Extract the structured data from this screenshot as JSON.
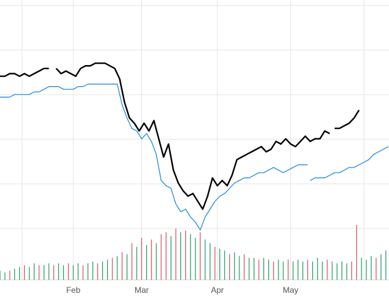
{
  "chart_data": {
    "type": "line",
    "title": "",
    "xlabel": "",
    "ylabel": "",
    "x_ticks": [
      {
        "label": "Feb",
        "t": 22
      },
      {
        "label": "Mar",
        "t": 50
      },
      {
        "label": "Apr",
        "t": 81
      },
      {
        "label": "May",
        "t": 111
      }
    ],
    "t_range": [
      -8,
      151
    ],
    "y_range": [
      0,
      100
    ],
    "grid": true,
    "legend": "none",
    "colors": {
      "primary": "#000000",
      "secondary": "#1e88e5",
      "volume_up": "#26a269",
      "volume_down": "#e05561",
      "grid": "#e6e6e6"
    },
    "series": [
      {
        "style": "black",
        "segments": [
          [
            [
              -8,
              76
            ],
            [
              -6,
              76
            ],
            [
              -4,
              77
            ],
            [
              -2,
              77
            ],
            [
              0,
              76
            ],
            [
              2,
              77
            ],
            [
              4,
              76
            ],
            [
              6,
              77
            ],
            [
              8,
              78
            ],
            [
              10,
              79
            ],
            [
              12,
              79
            ]
          ],
          [
            [
              15,
              79
            ],
            [
              17,
              77
            ],
            [
              19,
              78
            ],
            [
              21,
              77
            ],
            [
              23,
              76
            ],
            [
              25,
              79
            ],
            [
              27,
              80
            ],
            [
              29,
              80
            ],
            [
              31,
              81
            ],
            [
              33,
              81
            ],
            [
              35,
              81
            ],
            [
              37,
              80
            ],
            [
              39,
              79
            ],
            [
              41,
              75
            ],
            [
              43,
              66
            ],
            [
              45,
              60
            ],
            [
              47,
              58
            ],
            [
              49,
              55
            ],
            [
              51,
              58
            ],
            [
              53,
              55
            ],
            [
              55,
              59
            ],
            [
              57,
              52
            ],
            [
              59,
              45
            ],
            [
              61,
              50
            ],
            [
              63,
              40
            ],
            [
              65,
              35
            ],
            [
              67,
              32
            ],
            [
              69,
              30
            ],
            [
              71,
              31
            ],
            [
              73,
              28
            ],
            [
              75,
              25
            ],
            [
              77,
              30
            ],
            [
              79,
              37
            ],
            [
              81,
              34
            ],
            [
              83,
              36
            ],
            [
              85,
              34
            ],
            [
              87,
              38
            ],
            [
              89,
              44
            ],
            [
              91,
              45
            ],
            [
              93,
              46
            ],
            [
              95,
              47
            ],
            [
              97,
              48
            ],
            [
              99,
              49
            ],
            [
              101,
              47
            ],
            [
              103,
              48
            ],
            [
              105,
              51
            ],
            [
              107,
              50
            ],
            [
              109,
              52
            ],
            [
              111,
              50
            ],
            [
              113,
              49
            ],
            [
              115,
              51
            ],
            [
              117,
              53
            ],
            [
              119,
              51
            ],
            [
              121,
              52
            ],
            [
              123,
              52
            ],
            [
              125,
              55
            ],
            [
              127,
              54
            ]
          ],
          [
            [
              129,
              56
            ],
            [
              131,
              56
            ],
            [
              133,
              57
            ],
            [
              135,
              58
            ],
            [
              137,
              60
            ],
            [
              139,
              63
            ]
          ]
        ]
      },
      {
        "style": "blue",
        "segments": [
          [
            [
              -8,
              68
            ],
            [
              -6,
              68
            ],
            [
              -4,
              68
            ],
            [
              -2,
              69
            ],
            [
              0,
              69
            ],
            [
              2,
              69
            ],
            [
              4,
              69
            ],
            [
              6,
              70
            ],
            [
              8,
              70
            ],
            [
              10,
              71
            ],
            [
              12,
              72
            ],
            [
              14,
              72
            ],
            [
              16,
              72
            ],
            [
              18,
              71
            ],
            [
              20,
              71
            ],
            [
              22,
              71
            ],
            [
              24,
              72
            ],
            [
              26,
              72
            ],
            [
              28,
              73
            ],
            [
              30,
              73
            ],
            [
              32,
              73
            ],
            [
              34,
              73
            ],
            [
              36,
              73
            ],
            [
              38,
              73
            ],
            [
              40,
              73
            ],
            [
              42,
              65
            ],
            [
              44,
              60
            ],
            [
              46,
              56
            ],
            [
              48,
              55
            ],
            [
              50,
              52
            ],
            [
              52,
              54
            ],
            [
              54,
              51
            ],
            [
              56,
              46
            ],
            [
              58,
              36
            ],
            [
              60,
              34
            ],
            [
              62,
              33
            ],
            [
              64,
              27
            ],
            [
              66,
              24
            ],
            [
              68,
              25
            ],
            [
              70,
              22
            ],
            [
              72,
              20
            ],
            [
              74,
              17
            ],
            [
              76,
              22
            ],
            [
              78,
              25
            ],
            [
              80,
              28
            ],
            [
              82,
              30
            ],
            [
              84,
              31
            ],
            [
              86,
              33
            ],
            [
              88,
              35
            ],
            [
              90,
              36
            ],
            [
              92,
              37
            ],
            [
              94,
              37
            ],
            [
              96,
              38
            ],
            [
              98,
              39
            ],
            [
              100,
              39
            ],
            [
              102,
              40
            ],
            [
              104,
              41
            ],
            [
              106,
              40
            ],
            [
              108,
              39
            ],
            [
              110,
              40
            ],
            [
              112,
              41
            ],
            [
              114,
              42
            ],
            [
              116,
              42
            ],
            [
              118,
              42
            ]
          ],
          [
            [
              119,
              36
            ],
            [
              121,
              37
            ],
            [
              123,
              37
            ],
            [
              125,
              37
            ],
            [
              127,
              38
            ],
            [
              129,
              39
            ],
            [
              131,
              39
            ],
            [
              133,
              40
            ],
            [
              135,
              41
            ],
            [
              137,
              41
            ],
            [
              139,
              42
            ],
            [
              141,
              43
            ],
            [
              143,
              44
            ],
            [
              145,
              46
            ],
            [
              147,
              47
            ],
            [
              149,
              48
            ],
            [
              151,
              49
            ]
          ]
        ]
      }
    ],
    "volume": [
      {
        "t": -8,
        "v": 5,
        "d": "up"
      },
      {
        "t": -6,
        "v": 4,
        "d": "up"
      },
      {
        "t": -4,
        "v": 5,
        "d": "down"
      },
      {
        "t": -2,
        "v": 6,
        "d": "up"
      },
      {
        "t": 0,
        "v": 7,
        "d": "up"
      },
      {
        "t": 2,
        "v": 8,
        "d": "down"
      },
      {
        "t": 4,
        "v": 7,
        "d": "up"
      },
      {
        "t": 6,
        "v": 9,
        "d": "up"
      },
      {
        "t": 8,
        "v": 8,
        "d": "down"
      },
      {
        "t": 10,
        "v": 8,
        "d": "up"
      },
      {
        "t": 12,
        "v": 9,
        "d": "up"
      },
      {
        "t": 14,
        "v": 8,
        "d": "down"
      },
      {
        "t": 16,
        "v": 9,
        "d": "up"
      },
      {
        "t": 18,
        "v": 8,
        "d": "up"
      },
      {
        "t": 20,
        "v": 9,
        "d": "down"
      },
      {
        "t": 22,
        "v": 8,
        "d": "up"
      },
      {
        "t": 24,
        "v": 9,
        "d": "up"
      },
      {
        "t": 26,
        "v": 8,
        "d": "down"
      },
      {
        "t": 28,
        "v": 9,
        "d": "up"
      },
      {
        "t": 30,
        "v": 10,
        "d": "up"
      },
      {
        "t": 32,
        "v": 9,
        "d": "down"
      },
      {
        "t": 34,
        "v": 10,
        "d": "up"
      },
      {
        "t": 36,
        "v": 11,
        "d": "up"
      },
      {
        "t": 38,
        "v": 12,
        "d": "down"
      },
      {
        "t": 40,
        "v": 13,
        "d": "up"
      },
      {
        "t": 42,
        "v": 15,
        "d": "down"
      },
      {
        "t": 44,
        "v": 14,
        "d": "up"
      },
      {
        "t": 46,
        "v": 20,
        "d": "down"
      },
      {
        "t": 48,
        "v": 18,
        "d": "up"
      },
      {
        "t": 50,
        "v": 23,
        "d": "down"
      },
      {
        "t": 52,
        "v": 19,
        "d": "up"
      },
      {
        "t": 54,
        "v": 22,
        "d": "down"
      },
      {
        "t": 56,
        "v": 20,
        "d": "up"
      },
      {
        "t": 58,
        "v": 25,
        "d": "down"
      },
      {
        "t": 60,
        "v": 26,
        "d": "down"
      },
      {
        "t": 62,
        "v": 24,
        "d": "up"
      },
      {
        "t": 64,
        "v": 28,
        "d": "down"
      },
      {
        "t": 66,
        "v": 26,
        "d": "up"
      },
      {
        "t": 68,
        "v": 27,
        "d": "down"
      },
      {
        "t": 70,
        "v": 25,
        "d": "up"
      },
      {
        "t": 72,
        "v": 23,
        "d": "up"
      },
      {
        "t": 74,
        "v": 26,
        "d": "down"
      },
      {
        "t": 76,
        "v": 22,
        "d": "up"
      },
      {
        "t": 78,
        "v": 20,
        "d": "up"
      },
      {
        "t": 80,
        "v": 18,
        "d": "down"
      },
      {
        "t": 82,
        "v": 17,
        "d": "up"
      },
      {
        "t": 84,
        "v": 16,
        "d": "up"
      },
      {
        "t": 86,
        "v": 14,
        "d": "down"
      },
      {
        "t": 88,
        "v": 15,
        "d": "up"
      },
      {
        "t": 90,
        "v": 13,
        "d": "up"
      },
      {
        "t": 92,
        "v": 14,
        "d": "down"
      },
      {
        "t": 94,
        "v": 12,
        "d": "up"
      },
      {
        "t": 96,
        "v": 12,
        "d": "up"
      },
      {
        "t": 98,
        "v": 11,
        "d": "down"
      },
      {
        "t": 100,
        "v": 12,
        "d": "up"
      },
      {
        "t": 102,
        "v": 11,
        "d": "up"
      },
      {
        "t": 104,
        "v": 10,
        "d": "down"
      },
      {
        "t": 106,
        "v": 11,
        "d": "up"
      },
      {
        "t": 108,
        "v": 10,
        "d": "up"
      },
      {
        "t": 110,
        "v": 11,
        "d": "down"
      },
      {
        "t": 112,
        "v": 10,
        "d": "up"
      },
      {
        "t": 114,
        "v": 11,
        "d": "up"
      },
      {
        "t": 116,
        "v": 10,
        "d": "up"
      },
      {
        "t": 118,
        "v": 11,
        "d": "down"
      },
      {
        "t": 120,
        "v": 10,
        "d": "up"
      },
      {
        "t": 122,
        "v": 12,
        "d": "up"
      },
      {
        "t": 124,
        "v": 10,
        "d": "up"
      },
      {
        "t": 126,
        "v": 11,
        "d": "down"
      },
      {
        "t": 128,
        "v": 10,
        "d": "up"
      },
      {
        "t": 130,
        "v": 9,
        "d": "up"
      },
      {
        "t": 132,
        "v": 10,
        "d": "up"
      },
      {
        "t": 134,
        "v": 9,
        "d": "up"
      },
      {
        "t": 136,
        "v": 10,
        "d": "down"
      },
      {
        "t": 138,
        "v": 30,
        "d": "down"
      },
      {
        "t": 140,
        "v": 12,
        "d": "up"
      },
      {
        "t": 142,
        "v": 11,
        "d": "up"
      },
      {
        "t": 144,
        "v": 13,
        "d": "up"
      },
      {
        "t": 146,
        "v": 12,
        "d": "down"
      },
      {
        "t": 148,
        "v": 14,
        "d": "up"
      },
      {
        "t": 150,
        "v": 16,
        "d": "up"
      }
    ]
  }
}
